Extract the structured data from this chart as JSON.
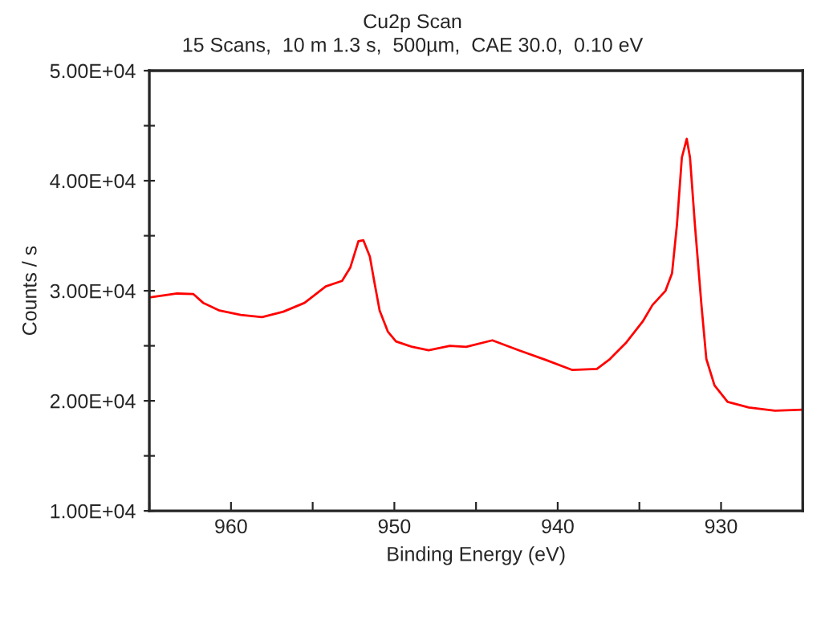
{
  "chart_data": {
    "type": "line",
    "title": "Cu2p Scan",
    "subtitle": "15 Scans,  10 m 1.3 s,  500µm,  CAE 30.0,  0.10 eV",
    "xlabel": "Binding Energy (eV)",
    "ylabel": "Counts / s",
    "xlim": [
      965,
      925
    ],
    "xticks": [
      {
        "value": 965,
        "label": null
      },
      960,
      {
        "value": 955,
        "label": null
      },
      950,
      {
        "value": 945,
        "label": null
      },
      940,
      {
        "value": 935,
        "label": null
      },
      930,
      {
        "value": 925,
        "label": null
      }
    ],
    "ylim": [
      10000,
      50000
    ],
    "yticks": [
      {
        "value": 10000,
        "label": "1.00E+04"
      },
      {
        "value": 15000,
        "label": null
      },
      {
        "value": 20000,
        "label": "2.00E+04"
      },
      {
        "value": 25000,
        "label": null
      },
      {
        "value": 30000,
        "label": "3.00E+04"
      },
      {
        "value": 35000,
        "label": null
      },
      {
        "value": 40000,
        "label": "4.00E+04"
      },
      {
        "value": 45000,
        "label": null
      },
      {
        "value": 50000,
        "label": "5.00E+04"
      }
    ],
    "grid": false,
    "legend": false,
    "marker": "none",
    "line_style": "solid",
    "series": [
      {
        "color": "#ff0000",
        "x": [
          965,
          963.3,
          962.3,
          961.7,
          960.7,
          959.4,
          958.1,
          956.8,
          955.5,
          954.8,
          954.2,
          953.2,
          952.7,
          952.2,
          951.9,
          951.5,
          951.2,
          950.9,
          950.4,
          949.9,
          948.9,
          947.9,
          946.6,
          945.6,
          944.0,
          942.4,
          940.7,
          939.1,
          937.6,
          936.8,
          935.8,
          934.8,
          934.2,
          933.4,
          933.0,
          932.7,
          932.4,
          932.1,
          931.9,
          931.6,
          931.2,
          930.9,
          930.4,
          929.6,
          928.3,
          926.7,
          925.0
        ],
        "values": [
          29400,
          29750,
          29700,
          28900,
          28200,
          27800,
          27600,
          28100,
          28900,
          29700,
          30400,
          30900,
          32100,
          34500,
          34600,
          33100,
          30600,
          28200,
          26300,
          25400,
          24900,
          24600,
          25000,
          24900,
          25500,
          24600,
          23700,
          22800,
          22900,
          23800,
          25300,
          27200,
          28700,
          30000,
          31600,
          36000,
          42100,
          43800,
          42100,
          36000,
          28700,
          23800,
          21400,
          19900,
          19400,
          19100,
          19200
        ]
      }
    ]
  }
}
